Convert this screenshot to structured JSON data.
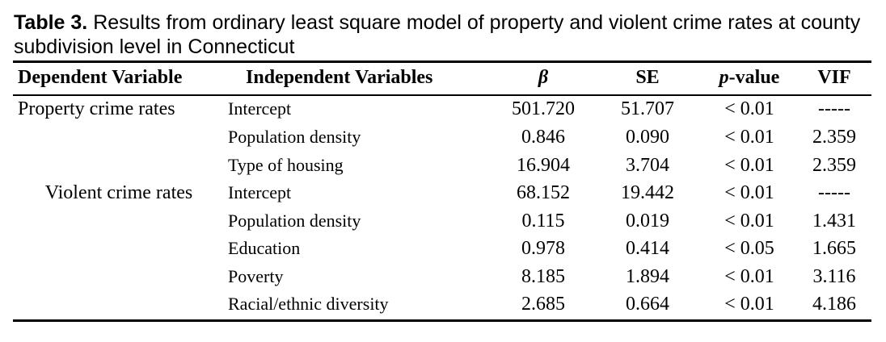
{
  "caption": {
    "label": "Table 3.",
    "text": " Results from ordinary least square model of property and violent crime rates at county subdivision level in Connecticut"
  },
  "table": {
    "headers": {
      "dependent": "Dependent Variable",
      "independent": "Independent Variables",
      "beta": "β",
      "se": "SE",
      "p_italic": "p",
      "p_rest": "-value",
      "vif": "VIF"
    },
    "rows": [
      {
        "dependent": "Property crime rates",
        "independent": "Intercept",
        "beta": "501.720",
        "se": "51.707",
        "p": "< 0.01",
        "vif": "-----"
      },
      {
        "dependent": "",
        "independent": "Population density",
        "beta": "0.846",
        "se": "0.090",
        "p": "< 0.01",
        "vif": "2.359"
      },
      {
        "dependent": "",
        "independent": "Type of housing",
        "beta": "16.904",
        "se": "3.704",
        "p": "< 0.01",
        "vif": "2.359"
      },
      {
        "dependent": "Violent crime rates",
        "independent": "Intercept",
        "beta": "68.152",
        "se": "19.442",
        "p": "< 0.01",
        "vif": "-----"
      },
      {
        "dependent": "",
        "independent": "Population density",
        "beta": "0.115",
        "se": "0.019",
        "p": "< 0.01",
        "vif": "1.431"
      },
      {
        "dependent": "",
        "independent": "Education",
        "beta": "0.978",
        "se": "0.414",
        "p": "< 0.05",
        "vif": "1.665"
      },
      {
        "dependent": "",
        "independent": "Poverty",
        "beta": "8.185",
        "se": "1.894",
        "p": "< 0.01",
        "vif": "3.116"
      },
      {
        "dependent": "",
        "independent": "Racial/ethnic diversity",
        "beta": "2.685",
        "se": "0.664",
        "p": "< 0.01",
        "vif": "4.186"
      }
    ]
  }
}
